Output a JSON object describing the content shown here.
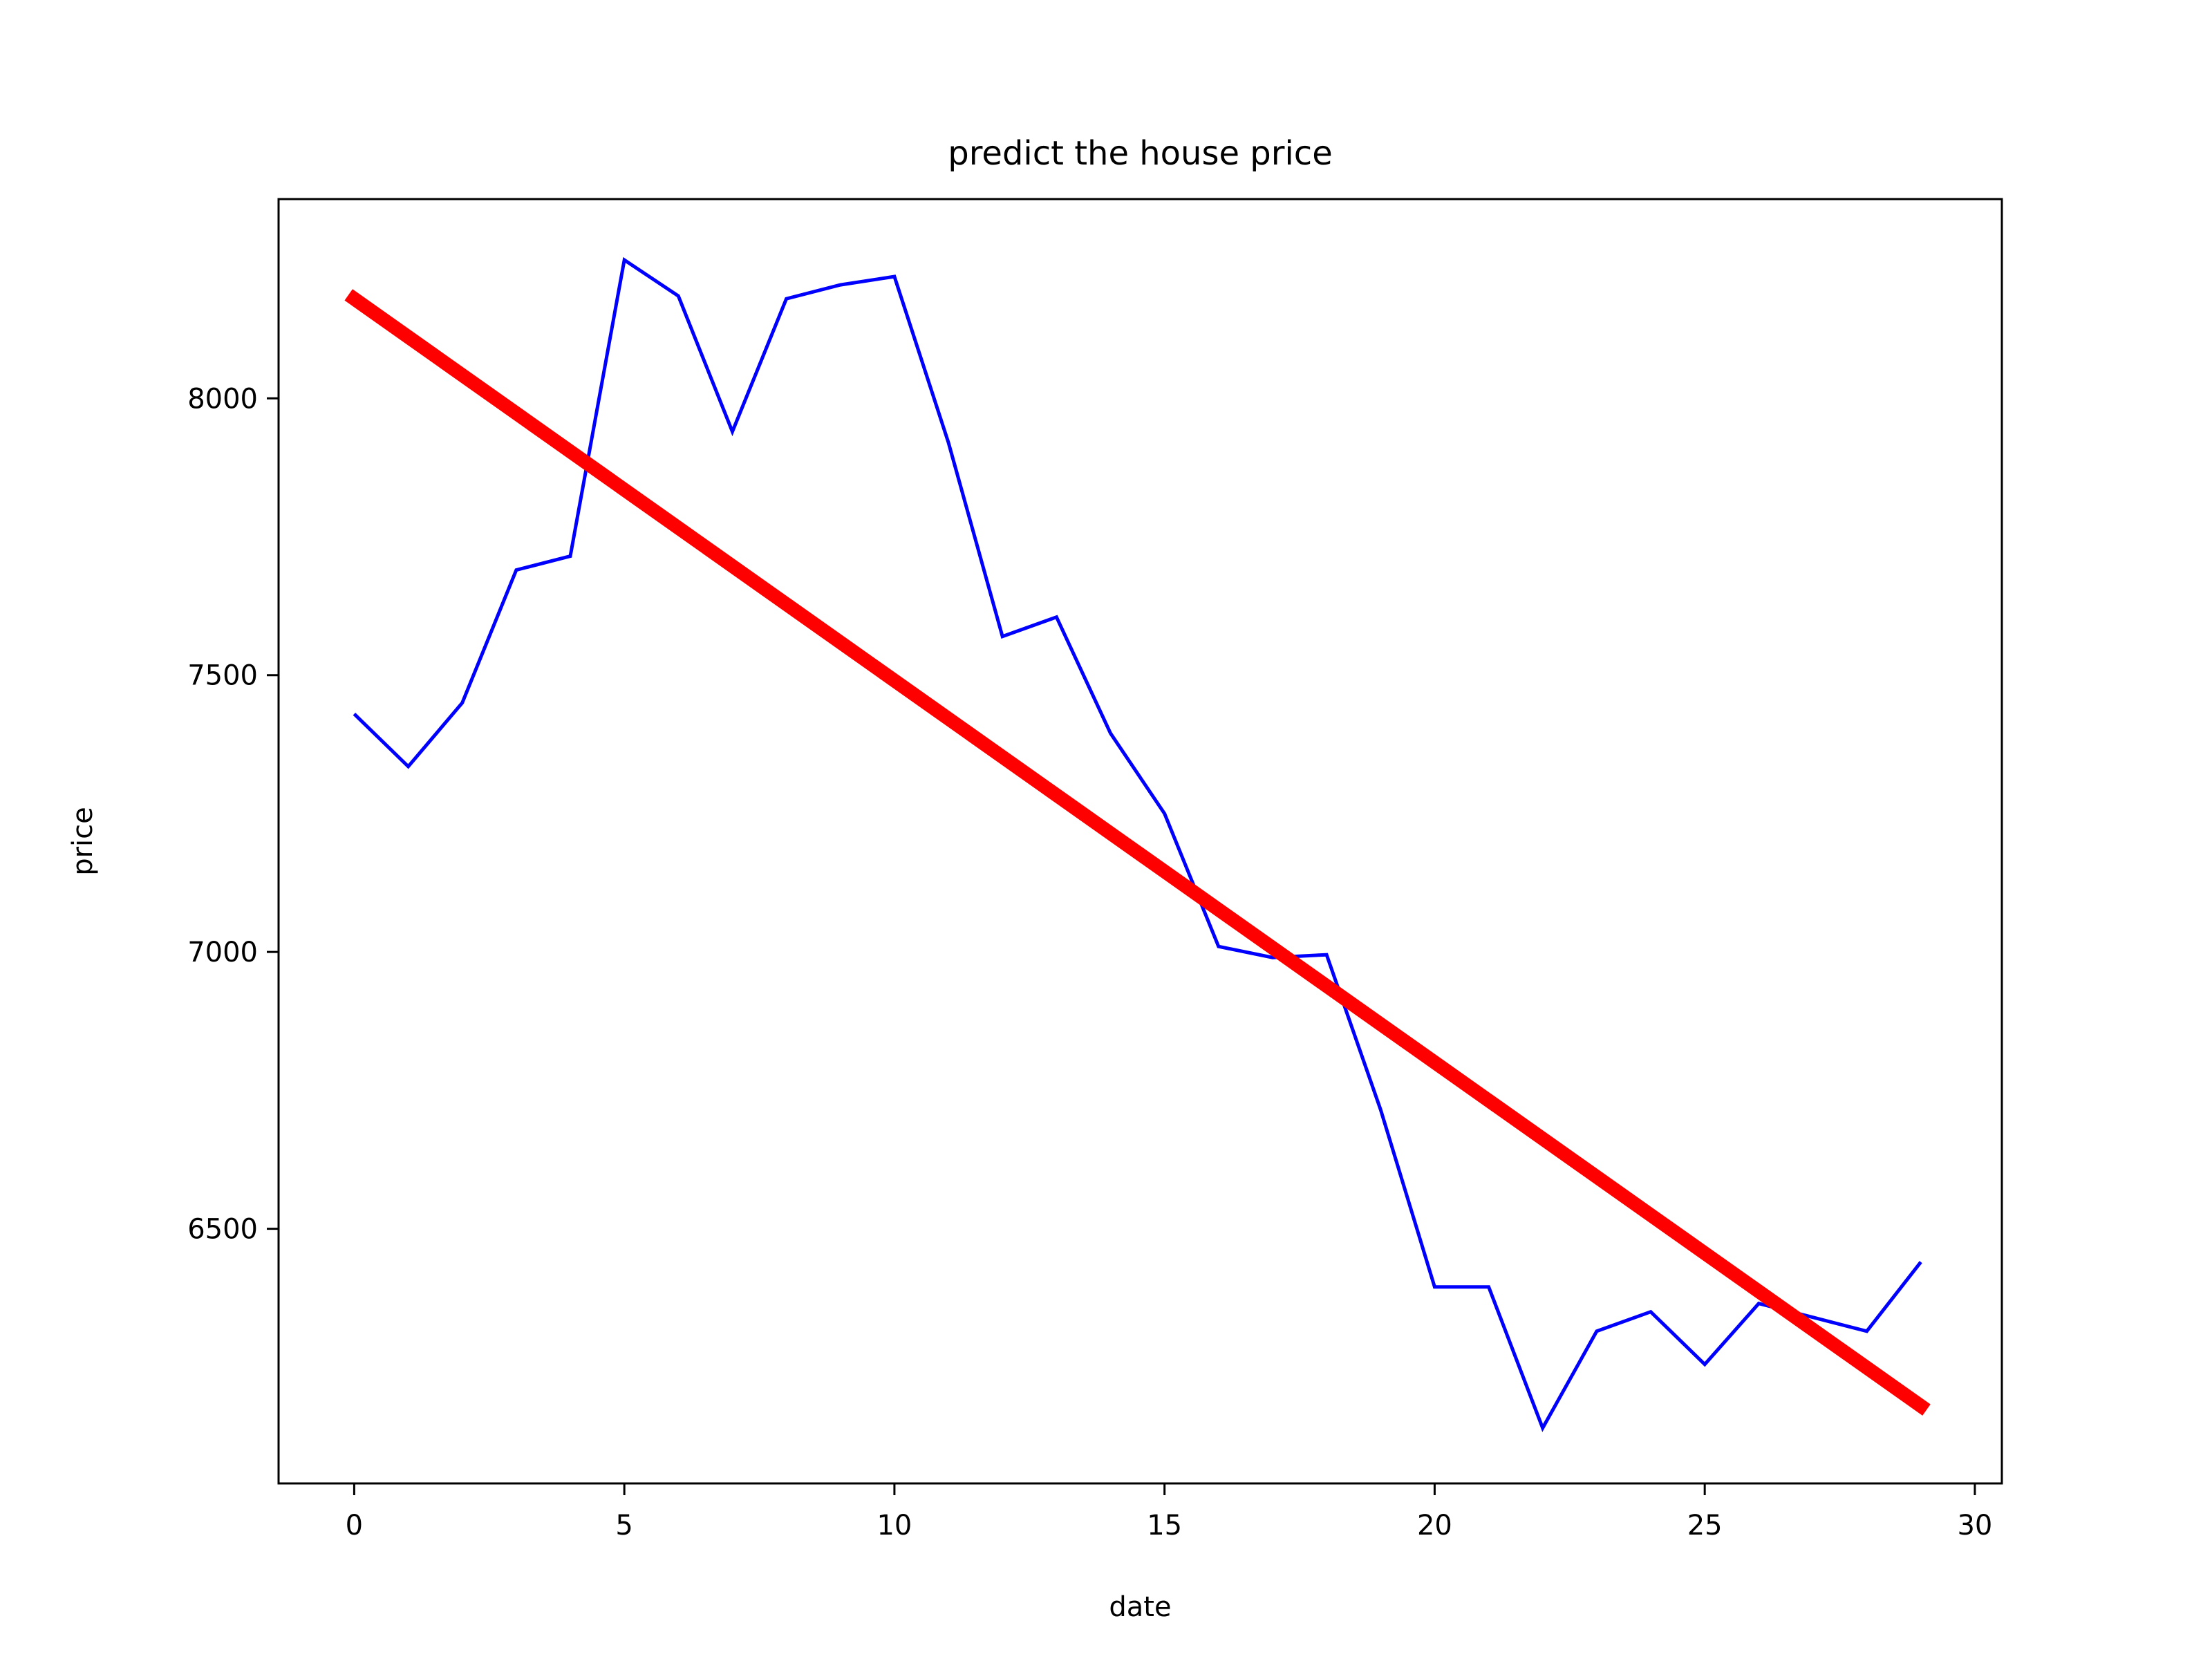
{
  "chart_data": {
    "type": "line",
    "title": "predict the house price",
    "xlabel": "date",
    "ylabel": "price",
    "xlim": [
      -1.4,
      30.5
    ],
    "ylim": [
      6040,
      8360
    ],
    "x_ticks": [
      0,
      5,
      10,
      15,
      20,
      25,
      30
    ],
    "y_ticks": [
      6500,
      7000,
      7500,
      8000
    ],
    "grid": false,
    "legend": "none",
    "series": [
      {
        "kind": "line",
        "color": "#0000ff",
        "x": [
          0,
          1,
          2,
          3,
          4,
          5,
          6,
          7,
          8,
          9,
          10,
          11,
          12,
          13,
          14,
          15,
          16,
          17,
          18,
          19,
          20,
          21,
          22,
          23,
          24,
          25,
          26,
          27,
          28,
          29
        ],
        "values": [
          7430,
          7335,
          7450,
          7690,
          7715,
          8250,
          8185,
          7940,
          8180,
          8205,
          8220,
          7920,
          7570,
          7605,
          7395,
          7250,
          7010,
          6990,
          6995,
          6715,
          6395,
          6395,
          6140,
          6315,
          6350,
          6255,
          6365,
          6340,
          6315,
          6440
        ]
      },
      {
        "kind": "fit-line",
        "color": "#ff0000",
        "x": [
          0,
          29
        ],
        "values": [
          8180,
          6180
        ]
      }
    ]
  }
}
